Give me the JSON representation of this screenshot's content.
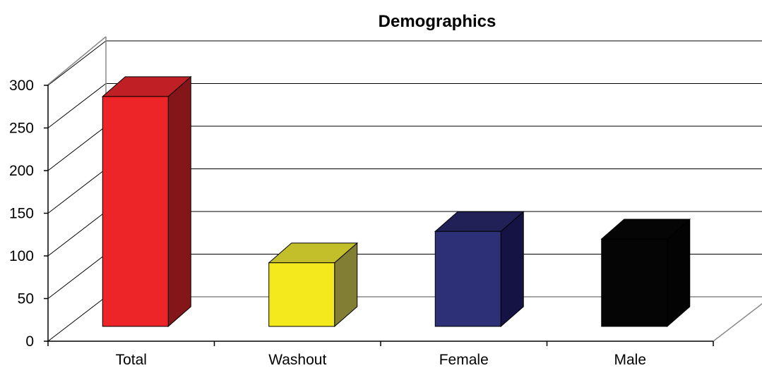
{
  "chart_data": {
    "type": "bar",
    "title": "Demographics",
    "categories": [
      "Total",
      "Washout",
      "Female",
      "Male"
    ],
    "values": [
      271,
      75,
      112,
      103
    ],
    "colors": {
      "Total": {
        "front": "#ee2528",
        "side": "#84161a",
        "top": "#c02025"
      },
      "Washout": {
        "front": "#f3e91c",
        "side": "#827f35",
        "top": "#c3bf2a"
      },
      "Female": {
        "front": "#2d2f77",
        "side": "#141344",
        "top": "#212158"
      },
      "Male": {
        "front": "#050505",
        "side": "#030303",
        "top": "#050505"
      }
    },
    "ylim": [
      0,
      300
    ],
    "yticks": [
      "0",
      "50",
      "100",
      "150",
      "200",
      "250",
      "300"
    ],
    "grid": true,
    "style": "3d-column"
  }
}
